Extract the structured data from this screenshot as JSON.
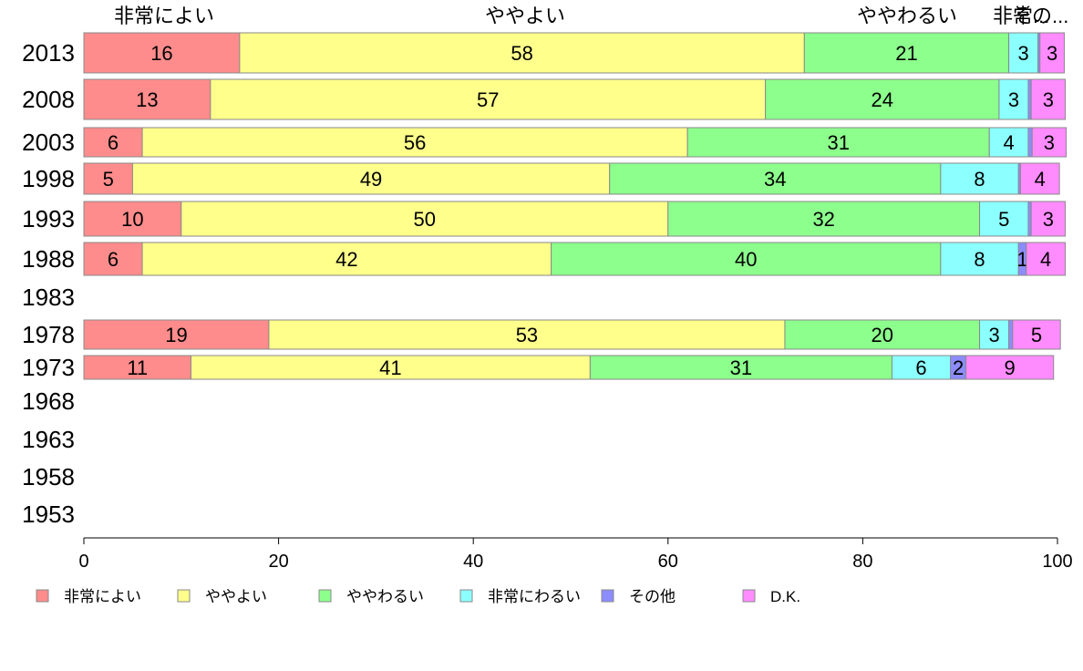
{
  "chart_data": {
    "type": "bar",
    "orientation": "horizontal",
    "stacked": true,
    "xlim": [
      0,
      100
    ],
    "x_ticks": [
      "0",
      "20",
      "40",
      "60",
      "80",
      "100"
    ],
    "categories": [
      "2013",
      "2008",
      "2003",
      "1998",
      "1993",
      "1988",
      "1983",
      "1978",
      "1973",
      "1968",
      "1963",
      "1958",
      "1953"
    ],
    "series": [
      {
        "name": "非常によい",
        "color": "#ff8c8c",
        "values": [
          16,
          13,
          6,
          5,
          10,
          6,
          null,
          19,
          11,
          null,
          null,
          null,
          null
        ],
        "labels": [
          "16",
          "13",
          "6",
          "5",
          "10",
          "6",
          "",
          "19",
          "11",
          "",
          "",
          "",
          ""
        ]
      },
      {
        "name": "ややよい",
        "color": "#ffff8c",
        "values": [
          58,
          57,
          56,
          49,
          50,
          42,
          null,
          53,
          41,
          null,
          null,
          null,
          null
        ],
        "labels": [
          "58",
          "57",
          "56",
          "49",
          "50",
          "42",
          "",
          "53",
          "41",
          "",
          "",
          "",
          ""
        ]
      },
      {
        "name": "ややわるい",
        "color": "#8cff8c",
        "values": [
          21,
          24,
          31,
          34,
          32,
          40,
          null,
          20,
          31,
          null,
          null,
          null,
          null
        ],
        "labels": [
          "21",
          "24",
          "31",
          "34",
          "32",
          "40",
          "",
          "20",
          "31",
          "",
          "",
          "",
          ""
        ]
      },
      {
        "name": "非常にわるい",
        "color": "#8cffff",
        "values": [
          3,
          3,
          4,
          8,
          5,
          8,
          null,
          3,
          6,
          null,
          null,
          null,
          null
        ],
        "labels": [
          "3",
          "3",
          "4",
          "8",
          "5",
          "8",
          "",
          "3",
          "6",
          "",
          "",
          "",
          ""
        ]
      },
      {
        "name": "その他",
        "color": "#8c8cff",
        "values": [
          0.2,
          0.3,
          0.4,
          0.2,
          0.3,
          0.8,
          null,
          0.4,
          1.6,
          null,
          null,
          null,
          null
        ],
        "labels": [
          "",
          "",
          "",
          "",
          "",
          "1",
          "",
          "",
          "2",
          "",
          "",
          "",
          ""
        ]
      },
      {
        "name": "D.K.",
        "color": "#ff8cff",
        "values": [
          2.5,
          3.5,
          3.5,
          4,
          3.5,
          4,
          null,
          4.9,
          9,
          null,
          null,
          null,
          null
        ],
        "labels": [
          "3",
          "3",
          "3",
          "4",
          "3",
          "4",
          "",
          "5",
          "9",
          "",
          "",
          "",
          ""
        ]
      }
    ],
    "top_labels": [
      "非常によい",
      "ややよい",
      "ややわるい",
      "非常...",
      "その..."
    ],
    "legend": {
      "position": "bottom",
      "items": [
        "非常によい",
        "ややよい",
        "ややわるい",
        "非常にわるい",
        "その他",
        "D.K."
      ]
    }
  }
}
